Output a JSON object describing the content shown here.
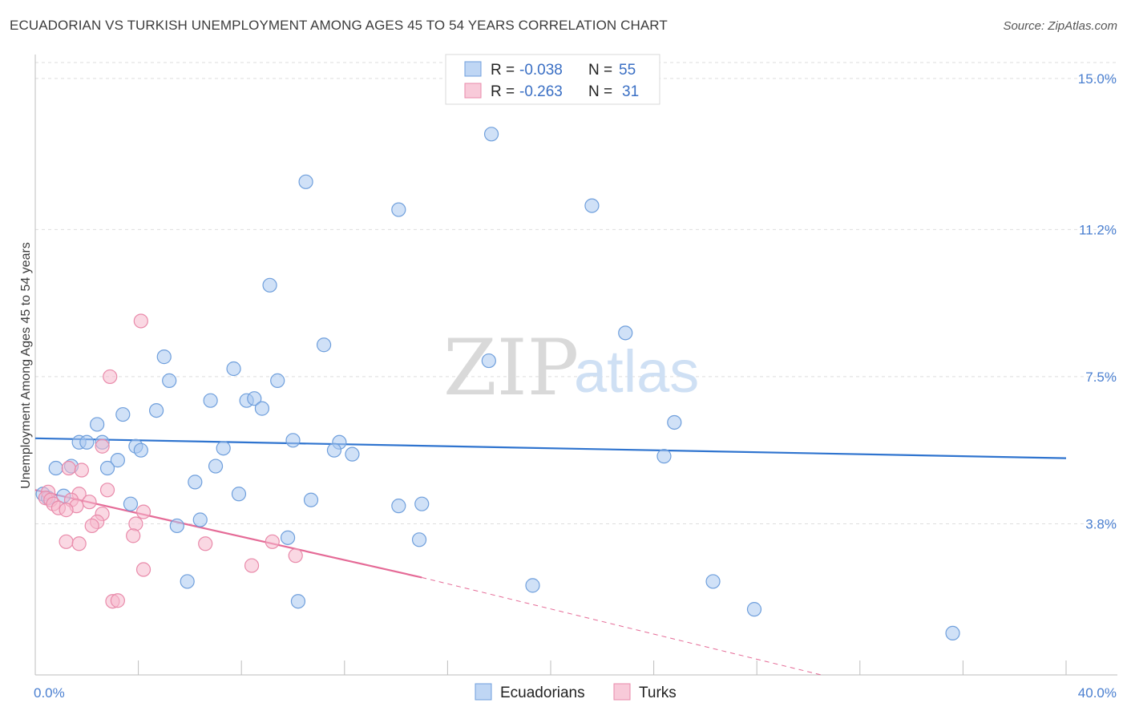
{
  "header": {
    "title": "ECUADORIAN VS TURKISH UNEMPLOYMENT AMONG AGES 45 TO 54 YEARS CORRELATION CHART",
    "source": "Source: ZipAtlas.com"
  },
  "watermark": {
    "zip": "ZIP",
    "atlas": "atlas"
  },
  "legend_top": {
    "rows": [
      {
        "r_label": "R = ",
        "r_value": "-0.038",
        "n_label": "N = ",
        "n_value": "55",
        "color": "#a9c8f0"
      },
      {
        "r_label": "R = ",
        "r_value": "-0.263",
        "n_label": "N = ",
        "n_value": "31",
        "color": "#f5b8cc"
      }
    ]
  },
  "legend_bottom": {
    "items": [
      {
        "label": "Ecuadorians",
        "color": "#a9c8f0"
      },
      {
        "label": "Turks",
        "color": "#f5b8cc"
      }
    ]
  },
  "chart_data": {
    "type": "scatter",
    "title": "ECUADORIAN VS TURKISH UNEMPLOYMENT AMONG AGES 45 TO 54 YEARS CORRELATION CHART",
    "xlabel": "",
    "ylabel": "Unemployment Among Ages 45 to 54 years",
    "xlim": [
      0,
      40
    ],
    "ylim": [
      0,
      15.4
    ],
    "x_tick_labels": {
      "min": "0.0%",
      "max": "40.0%"
    },
    "y_ticks": [
      3.8,
      7.5,
      11.2,
      15.0
    ],
    "y_tick_labels": [
      "3.8%",
      "7.5%",
      "11.2%",
      "15.0%"
    ],
    "grid": true,
    "colors": {
      "ecuadorians_fill": "#a9c8f0",
      "ecuadorians_stroke": "#6f9fdc",
      "ecuadorians_line": "#2f74cf",
      "turks_fill": "#f5b8cc",
      "turks_stroke": "#e98aaa",
      "turks_line": "#e56b97"
    },
    "series": [
      {
        "name": "Ecuadorians",
        "points": [
          [
            17.7,
            13.6
          ],
          [
            10.5,
            12.4
          ],
          [
            14.1,
            11.7
          ],
          [
            21.6,
            11.8
          ],
          [
            9.1,
            9.8
          ],
          [
            22.9,
            8.6
          ],
          [
            11.2,
            8.3
          ],
          [
            5.0,
            8.0
          ],
          [
            17.6,
            7.9
          ],
          [
            7.7,
            7.7
          ],
          [
            5.2,
            7.4
          ],
          [
            9.4,
            7.4
          ],
          [
            6.8,
            6.9
          ],
          [
            8.2,
            6.9
          ],
          [
            8.5,
            6.95
          ],
          [
            4.7,
            6.65
          ],
          [
            8.8,
            6.7
          ],
          [
            3.4,
            6.55
          ],
          [
            24.8,
            6.35
          ],
          [
            2.4,
            6.3
          ],
          [
            1.7,
            5.85
          ],
          [
            2.0,
            5.85
          ],
          [
            2.6,
            5.85
          ],
          [
            3.9,
            5.75
          ],
          [
            10.0,
            5.9
          ],
          [
            11.8,
            5.85
          ],
          [
            4.1,
            5.65
          ],
          [
            7.3,
            5.7
          ],
          [
            11.6,
            5.65
          ],
          [
            12.3,
            5.55
          ],
          [
            24.4,
            5.5
          ],
          [
            3.2,
            5.4
          ],
          [
            0.8,
            5.2
          ],
          [
            1.4,
            5.25
          ],
          [
            2.8,
            5.2
          ],
          [
            7.0,
            5.25
          ],
          [
            6.2,
            4.85
          ],
          [
            0.3,
            4.55
          ],
          [
            0.5,
            4.45
          ],
          [
            1.1,
            4.5
          ],
          [
            7.9,
            4.55
          ],
          [
            10.7,
            4.4
          ],
          [
            3.7,
            4.3
          ],
          [
            14.1,
            4.25
          ],
          [
            15.0,
            4.3
          ],
          [
            5.5,
            3.75
          ],
          [
            6.4,
            3.9
          ],
          [
            9.8,
            3.45
          ],
          [
            14.9,
            3.4
          ],
          [
            5.9,
            2.35
          ],
          [
            19.3,
            2.25
          ],
          [
            26.3,
            2.35
          ],
          [
            10.2,
            1.85
          ],
          [
            27.9,
            1.65
          ],
          [
            35.6,
            1.05
          ]
        ]
      },
      {
        "name": "Turks",
        "points": [
          [
            4.1,
            8.9
          ],
          [
            2.9,
            7.5
          ],
          [
            2.6,
            5.75
          ],
          [
            1.3,
            5.2
          ],
          [
            1.8,
            5.15
          ],
          [
            2.8,
            4.65
          ],
          [
            0.5,
            4.6
          ],
          [
            1.7,
            4.55
          ],
          [
            0.4,
            4.45
          ],
          [
            0.6,
            4.4
          ],
          [
            1.4,
            4.4
          ],
          [
            2.1,
            4.35
          ],
          [
            0.7,
            4.3
          ],
          [
            1.6,
            4.25
          ],
          [
            0.9,
            4.2
          ],
          [
            1.2,
            4.15
          ],
          [
            4.2,
            4.1
          ],
          [
            2.6,
            4.05
          ],
          [
            2.4,
            3.85
          ],
          [
            3.9,
            3.8
          ],
          [
            2.2,
            3.75
          ],
          [
            3.8,
            3.5
          ],
          [
            1.2,
            3.35
          ],
          [
            1.7,
            3.3
          ],
          [
            6.6,
            3.3
          ],
          [
            9.2,
            3.35
          ],
          [
            10.1,
            3.0
          ],
          [
            4.2,
            2.65
          ],
          [
            8.4,
            2.75
          ],
          [
            3.0,
            1.85
          ],
          [
            3.2,
            1.87
          ]
        ]
      }
    ],
    "trend_lines": [
      {
        "name": "Ecuadorians",
        "x": [
          0,
          40
        ],
        "y": [
          5.95,
          5.45
        ]
      },
      {
        "name": "Turks",
        "x": [
          0,
          15
        ],
        "y": [
          4.65,
          2.45
        ],
        "dashed_extension_to": [
          30.5,
          0.0
        ]
      }
    ]
  }
}
